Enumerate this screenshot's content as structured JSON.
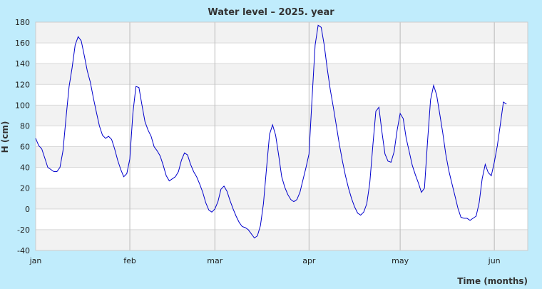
{
  "chart_data": {
    "type": "line",
    "title": "Water level – 2025. year",
    "xlabel": "Time (months)",
    "ylabel": "H (cm)",
    "ylim": [
      -40,
      180
    ],
    "yticks": [
      -40,
      -20,
      0,
      20,
      40,
      60,
      80,
      100,
      120,
      140,
      160,
      180
    ],
    "grid": true,
    "xlim": [
      "2025-01-01",
      "2025-06-12"
    ],
    "xticks": [
      {
        "label": "jan",
        "date": "2025-01-01"
      },
      {
        "label": "feb",
        "date": "2025-02-01"
      },
      {
        "label": "mar",
        "date": "2025-03-01"
      },
      {
        "label": "apr",
        "date": "2025-04-01"
      },
      {
        "label": "may",
        "date": "2025-05-01"
      },
      {
        "label": "jun",
        "date": "2025-06-01"
      }
    ],
    "colors": {
      "line": "#0000cc",
      "band": "#f2f2f2",
      "grid": "#d8d8d8",
      "plot_bg": "#ffffff",
      "page_bg": "#c0ecfc"
    },
    "series": [
      {
        "points": [
          [
            "2025-01-01",
            68
          ],
          [
            "2025-01-02",
            61
          ],
          [
            "2025-01-03",
            58
          ],
          [
            "2025-01-04",
            49
          ],
          [
            "2025-01-05",
            40
          ],
          [
            "2025-01-06",
            38
          ],
          [
            "2025-01-07",
            36
          ],
          [
            "2025-01-08",
            36
          ],
          [
            "2025-01-09",
            40
          ],
          [
            "2025-01-10",
            56
          ],
          [
            "2025-01-11",
            88
          ],
          [
            "2025-01-12",
            118
          ],
          [
            "2025-01-13",
            136
          ],
          [
            "2025-01-14",
            158
          ],
          [
            "2025-01-15",
            166
          ],
          [
            "2025-01-16",
            162
          ],
          [
            "2025-01-17",
            148
          ],
          [
            "2025-01-18",
            133
          ],
          [
            "2025-01-19",
            122
          ],
          [
            "2025-01-20",
            107
          ],
          [
            "2025-01-21",
            93
          ],
          [
            "2025-01-22",
            80
          ],
          [
            "2025-01-23",
            71
          ],
          [
            "2025-01-24",
            68
          ],
          [
            "2025-01-25",
            70
          ],
          [
            "2025-01-26",
            67
          ],
          [
            "2025-01-27",
            58
          ],
          [
            "2025-01-28",
            47
          ],
          [
            "2025-01-29",
            38
          ],
          [
            "2025-01-30",
            31
          ],
          [
            "2025-01-31",
            34
          ],
          [
            "2025-02-01",
            48
          ],
          [
            "2025-02-02",
            92
          ],
          [
            "2025-02-03",
            118
          ],
          [
            "2025-02-04",
            117
          ],
          [
            "2025-02-05",
            100
          ],
          [
            "2025-02-06",
            84
          ],
          [
            "2025-02-07",
            76
          ],
          [
            "2025-02-08",
            70
          ],
          [
            "2025-02-09",
            60
          ],
          [
            "2025-02-10",
            56
          ],
          [
            "2025-02-11",
            51
          ],
          [
            "2025-02-12",
            42
          ],
          [
            "2025-02-13",
            32
          ],
          [
            "2025-02-14",
            27
          ],
          [
            "2025-02-15",
            29
          ],
          [
            "2025-02-16",
            31
          ],
          [
            "2025-02-17",
            36
          ],
          [
            "2025-02-18",
            47
          ],
          [
            "2025-02-19",
            54
          ],
          [
            "2025-02-20",
            52
          ],
          [
            "2025-02-21",
            43
          ],
          [
            "2025-02-22",
            36
          ],
          [
            "2025-02-23",
            31
          ],
          [
            "2025-02-24",
            24
          ],
          [
            "2025-02-25",
            16
          ],
          [
            "2025-02-26",
            6
          ],
          [
            "2025-02-27",
            -1
          ],
          [
            "2025-02-28",
            -3
          ],
          [
            "2025-03-01",
            0
          ],
          [
            "2025-03-02",
            7
          ],
          [
            "2025-03-03",
            19
          ],
          [
            "2025-03-04",
            22
          ],
          [
            "2025-03-05",
            17
          ],
          [
            "2025-03-06",
            8
          ],
          [
            "2025-03-07",
            0
          ],
          [
            "2025-03-08",
            -7
          ],
          [
            "2025-03-09",
            -13
          ],
          [
            "2025-03-10",
            -17
          ],
          [
            "2025-03-11",
            -18
          ],
          [
            "2025-03-12",
            -20
          ],
          [
            "2025-03-13",
            -24
          ],
          [
            "2025-03-14",
            -28
          ],
          [
            "2025-03-15",
            -26
          ],
          [
            "2025-03-16",
            -16
          ],
          [
            "2025-03-17",
            5
          ],
          [
            "2025-03-18",
            39
          ],
          [
            "2025-03-19",
            72
          ],
          [
            "2025-03-20",
            81
          ],
          [
            "2025-03-21",
            71
          ],
          [
            "2025-03-22",
            52
          ],
          [
            "2025-03-23",
            31
          ],
          [
            "2025-03-24",
            21
          ],
          [
            "2025-03-25",
            14
          ],
          [
            "2025-03-26",
            9
          ],
          [
            "2025-03-27",
            7
          ],
          [
            "2025-03-28",
            9
          ],
          [
            "2025-03-29",
            16
          ],
          [
            "2025-03-30",
            28
          ],
          [
            "2025-03-31",
            40
          ],
          [
            "2025-04-01",
            53
          ],
          [
            "2025-04-02",
            107
          ],
          [
            "2025-04-03",
            158
          ],
          [
            "2025-04-04",
            177
          ],
          [
            "2025-04-05",
            175
          ],
          [
            "2025-04-06",
            158
          ],
          [
            "2025-04-07",
            135
          ],
          [
            "2025-04-08",
            115
          ],
          [
            "2025-04-09",
            98
          ],
          [
            "2025-04-10",
            80
          ],
          [
            "2025-04-11",
            62
          ],
          [
            "2025-04-12",
            46
          ],
          [
            "2025-04-13",
            32
          ],
          [
            "2025-04-14",
            20
          ],
          [
            "2025-04-15",
            10
          ],
          [
            "2025-04-16",
            2
          ],
          [
            "2025-04-17",
            -4
          ],
          [
            "2025-04-18",
            -6
          ],
          [
            "2025-04-19",
            -3
          ],
          [
            "2025-04-20",
            5
          ],
          [
            "2025-04-21",
            25
          ],
          [
            "2025-04-22",
            61
          ],
          [
            "2025-04-23",
            94
          ],
          [
            "2025-04-24",
            98
          ],
          [
            "2025-04-25",
            74
          ],
          [
            "2025-04-26",
            53
          ],
          [
            "2025-04-27",
            46
          ],
          [
            "2025-04-28",
            45
          ],
          [
            "2025-04-29",
            55
          ],
          [
            "2025-04-30",
            76
          ],
          [
            "2025-05-01",
            92
          ],
          [
            "2025-05-02",
            87
          ],
          [
            "2025-05-03",
            68
          ],
          [
            "2025-05-04",
            55
          ],
          [
            "2025-05-05",
            42
          ],
          [
            "2025-05-06",
            33
          ],
          [
            "2025-05-07",
            25
          ],
          [
            "2025-05-08",
            16
          ],
          [
            "2025-05-09",
            20
          ],
          [
            "2025-05-10",
            64
          ],
          [
            "2025-05-11",
            105
          ],
          [
            "2025-05-12",
            119
          ],
          [
            "2025-05-13",
            110
          ],
          [
            "2025-05-14",
            92
          ],
          [
            "2025-05-15",
            74
          ],
          [
            "2025-05-16",
            53
          ],
          [
            "2025-05-17",
            37
          ],
          [
            "2025-05-18",
            25
          ],
          [
            "2025-05-19",
            13
          ],
          [
            "2025-05-20",
            1
          ],
          [
            "2025-05-21",
            -8
          ],
          [
            "2025-05-22",
            -9
          ],
          [
            "2025-05-23",
            -9
          ],
          [
            "2025-05-24",
            -11
          ],
          [
            "2025-05-25",
            -9
          ],
          [
            "2025-05-26",
            -7
          ],
          [
            "2025-05-27",
            6
          ],
          [
            "2025-05-28",
            29
          ],
          [
            "2025-05-29",
            43
          ],
          [
            "2025-05-30",
            35
          ],
          [
            "2025-05-31",
            32
          ],
          [
            "2025-06-01",
            45
          ],
          [
            "2025-06-02",
            61
          ],
          [
            "2025-06-03",
            82
          ],
          [
            "2025-06-04",
            103
          ],
          [
            "2025-06-05",
            101
          ]
        ]
      }
    ]
  }
}
